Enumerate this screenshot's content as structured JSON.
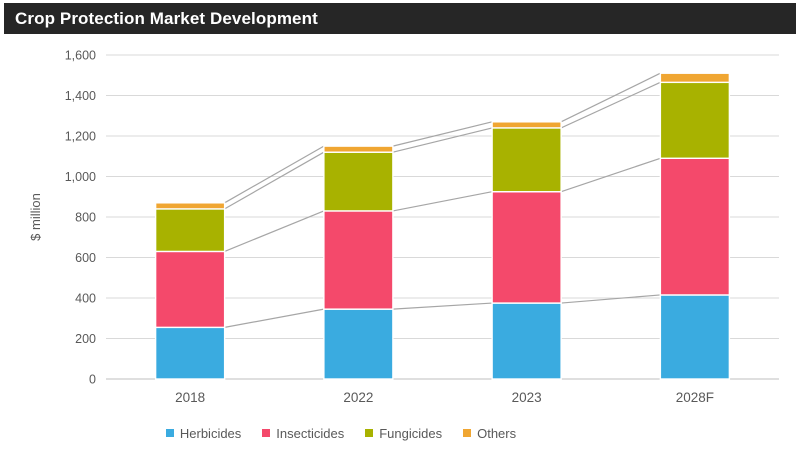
{
  "title": "Crop Protection Market Development",
  "title_bar": {
    "background": "#262626",
    "text_color": "#FFFFFF"
  },
  "chart_data": {
    "type": "bar",
    "stacked": true,
    "title": "Crop Protection Market Development",
    "xlabel": "",
    "ylabel": "$ million",
    "ylim": [
      0,
      1600
    ],
    "y_tick_step": 200,
    "y_tick_labels": [
      "0",
      "200",
      "400",
      "600",
      "800",
      "1,000",
      "1,200",
      "1,400",
      "1,600"
    ],
    "categories": [
      "2018",
      "2022",
      "2023",
      "2028F"
    ],
    "series": [
      {
        "name": "Herbicides",
        "color": "#3AABE0",
        "values": [
          255,
          345,
          375,
          415
        ]
      },
      {
        "name": "Insecticides",
        "color": "#F4496B",
        "values": [
          375,
          485,
          550,
          675
        ]
      },
      {
        "name": "Fungicides",
        "color": "#A8B200",
        "values": [
          210,
          290,
          315,
          375
        ]
      },
      {
        "name": "Others",
        "color": "#F0A632",
        "values": [
          30,
          30,
          30,
          45
        ]
      }
    ],
    "totals": [
      870,
      1150,
      1270,
      1510
    ],
    "grid": true,
    "series_connector_lines": true,
    "legend_position": "bottom",
    "colors": {
      "gridline": "#D9D9D9",
      "baseline": "#BFBFBF",
      "series_line": "#A6A6A6",
      "axis_text": "#595959",
      "segment_separator": "#FFFFFF"
    }
  }
}
